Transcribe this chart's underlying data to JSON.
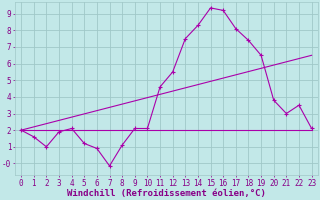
{
  "xlabel": "Windchill (Refroidissement éolien,°C)",
  "xlim": [
    -0.5,
    23.5
  ],
  "ylim": [
    -0.7,
    9.7
  ],
  "xticks": [
    0,
    1,
    2,
    3,
    4,
    5,
    6,
    7,
    8,
    9,
    10,
    11,
    12,
    13,
    14,
    15,
    16,
    17,
    18,
    19,
    20,
    21,
    22,
    23
  ],
  "yticks": [
    0,
    1,
    2,
    3,
    4,
    5,
    6,
    7,
    8,
    9
  ],
  "bg_color": "#c2e8e8",
  "grid_color": "#a0c8c8",
  "line_color": "#aa00aa",
  "line1_x": [
    0,
    1,
    2,
    3,
    4,
    5,
    6,
    7,
    8,
    9,
    10,
    11,
    12,
    13,
    14,
    15,
    16,
    17,
    18,
    19,
    20,
    21,
    22,
    23
  ],
  "line1_y": [
    2.0,
    1.6,
    1.0,
    1.9,
    2.1,
    1.2,
    0.9,
    -0.15,
    1.1,
    2.1,
    2.1,
    4.6,
    5.5,
    7.5,
    8.3,
    9.35,
    9.2,
    8.1,
    7.4,
    6.5,
    3.8,
    3.0,
    3.5,
    2.1
  ],
  "line2_x": [
    0,
    23
  ],
  "line2_y": [
    2.0,
    2.0
  ],
  "line3_x": [
    0,
    23
  ],
  "line3_y": [
    2.0,
    6.5
  ],
  "font_color": "#880088",
  "tick_font_size": 5.5,
  "label_font_size": 6.5,
  "marker": "+"
}
